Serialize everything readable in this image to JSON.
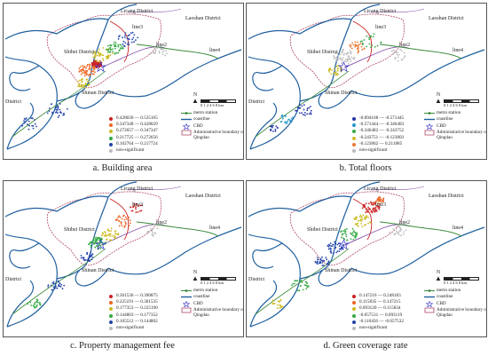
{
  "district_labels": {
    "licang": "Licang District",
    "laoshan": "Laoshan District",
    "shibei": "Shibei District",
    "shinan": "Shinan District",
    "district": "District",
    "line3": "line3",
    "line2": "line2",
    "line4": "line4"
  },
  "north_label": "N",
  "scale_label": "0 1 2   4   6   8 km",
  "legend_common": {
    "metro_station": "metro station",
    "coastline": "coastline",
    "cbd": "CBD",
    "admin_boundary": "Administrative boundary of Qingdao"
  },
  "panels": [
    {
      "caption": "a. Building area",
      "classes": [
        {
          "range": "0.428030 — 0.535105",
          "color": "#cc2222"
        },
        {
          "range": "0.347348 — 0.428029",
          "color": "#ee6622"
        },
        {
          "range": "0.272657 — 0.347347",
          "color": "#ccbb22"
        },
        {
          "range": "0.217725 — 0.272656",
          "color": "#33aa44"
        },
        {
          "range": "0.162764 — 0.217724",
          "color": "#2244aa"
        },
        {
          "range": "non-significant",
          "color": "#bbbbbb"
        }
      ]
    },
    {
      "caption": "b. Total floors",
      "classes": [
        {
          "range": "-0.894168 — -0.571445",
          "color": "#2233aa"
        },
        {
          "range": "-0.571444 — -0.346483",
          "color": "#2299cc"
        },
        {
          "range": "-0.346482 — -0.243752",
          "color": "#33aa44"
        },
        {
          "range": "-0.243751 — -0.123803",
          "color": "#ccbb22"
        },
        {
          "range": "-0.123802 — 0.211885",
          "color": "#ee7733"
        },
        {
          "range": "non-significant",
          "color": "#bbbbbb"
        }
      ]
    },
    {
      "caption": "c. Property management fee",
      "classes": [
        {
          "range": "0.301536 — 0.390875",
          "color": "#cc2222"
        },
        {
          "range": "0.225191 — 0.301535",
          "color": "#ee6622"
        },
        {
          "range": "0.177353 — 0.225190",
          "color": "#ccbb22"
        },
        {
          "range": "0.144803 — 0.177352",
          "color": "#33aa44"
        },
        {
          "range": "0.105512 — 0.144802",
          "color": "#2244aa"
        },
        {
          "range": "non-significant",
          "color": "#bbbbbb"
        }
      ]
    },
    {
      "caption": "d. Green coverage rate",
      "classes": [
        {
          "range": "0.147216 — 0.248183",
          "color": "#cc2222"
        },
        {
          "range": "0.115835 — 0.147215",
          "color": "#ee6622"
        },
        {
          "range": "0.093120 — 0.115834",
          "color": "#ccbb22"
        },
        {
          "range": "-0.057531 — 0.093119",
          "color": "#33aa44"
        },
        {
          "range": "-0.110456 — -0.057532",
          "color": "#2244aa"
        },
        {
          "range": "non-significant",
          "color": "#bbbbbb"
        }
      ]
    }
  ],
  "colors": {
    "coastline": "#1f5f9f",
    "admin_boundary": "#b04a6a",
    "metro_green": "#3a8a3a",
    "metro_red": "#cc2222",
    "metro_purple": "#8855aa",
    "cbd": "#3333cc"
  }
}
